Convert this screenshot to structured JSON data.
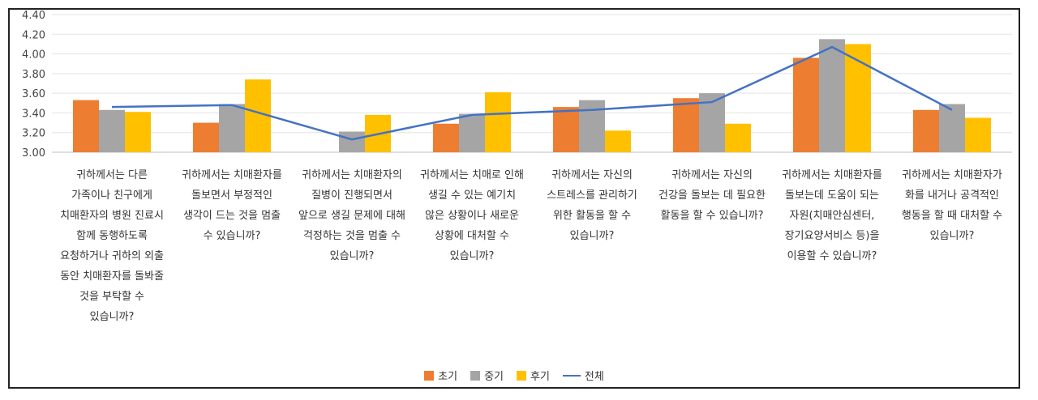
{
  "chart_data": {
    "type": "bar",
    "title": "",
    "xlabel": "",
    "ylabel": "",
    "ylim": [
      3.0,
      4.4
    ],
    "yticks": [
      "3.00",
      "3.20",
      "3.40",
      "3.60",
      "3.80",
      "4.00",
      "4.20",
      "4.40"
    ],
    "grid": true,
    "legend_position": "bottom",
    "categories": [
      "귀하께서는 다른 가족이나 친구에게 치매환자의 병원 진료시 함께 동행하도록 요청하거나 귀하의 외출 동안 치매환자를 돌봐줄 것을 부탁할 수 있습니까?",
      "귀하께서는 치매환자를 돌보면서 부정적인 생각이 드는 것을 멈출 수 있습니까?",
      "귀하께서는 치매환자의 질병이 진행되면서 앞으로 생길 문제에 대해 걱정하는 것을 멈출 수 있습니까?",
      "귀하께서는 치매로 인해 생길 수 있는 예기치 않은 상황이나 새로운 상황에 대처할 수 있습니까?",
      "귀하께서는 자신의 스트레스를 관리하기 위한 활동을 할 수 있습니까?",
      "귀하께서는 자신의 건강을 돌보는 데 필요한 활동을 할 수 있습니까?",
      "귀하께서는 치매환자를 돌보는데 도움이 되는 자원(치매안심센터, 장기요양서비스 등)을 이용할 수 있습니까?",
      "귀하께서는 치매환자가 화를 내거나 공격적인 행동을 할 때 대처할 수 있습니까?"
    ],
    "series": [
      {
        "name": "초기",
        "kind": "bar",
        "color": "#ED7D31",
        "values": [
          3.53,
          3.3,
          2.95,
          3.29,
          3.46,
          3.55,
          3.96,
          3.43
        ]
      },
      {
        "name": "중기",
        "kind": "bar",
        "color": "#A5A5A5",
        "values": [
          3.43,
          3.49,
          3.21,
          3.39,
          3.53,
          3.6,
          4.15,
          3.49
        ]
      },
      {
        "name": "후기",
        "kind": "bar",
        "color": "#FFC000",
        "values": [
          3.41,
          3.74,
          3.38,
          3.61,
          3.22,
          3.29,
          4.1,
          3.35
        ]
      },
      {
        "name": "전체",
        "kind": "line",
        "color": "#4472C4",
        "values": [
          3.46,
          3.48,
          3.13,
          3.38,
          3.43,
          3.51,
          4.07,
          3.43
        ]
      }
    ]
  }
}
